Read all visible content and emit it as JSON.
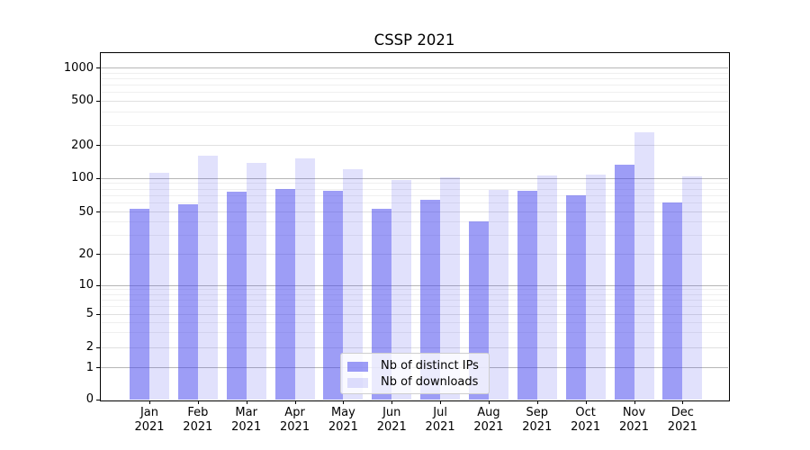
{
  "chart_data": {
    "type": "bar",
    "title": "CSSP 2021",
    "categories": [
      "Jan 2021",
      "Feb 2021",
      "Mar 2021",
      "Apr 2021",
      "May 2021",
      "Jun 2021",
      "Jul 2021",
      "Aug 2021",
      "Sep 2021",
      "Oct 2021",
      "Nov 2021",
      "Dec 2021"
    ],
    "series": [
      {
        "name": "Nb of distinct IPs",
        "color_hex": "#a9a9f5",
        "css_color": "rgba(68,68,238,0.52)",
        "values": [
          53,
          58,
          75,
          80,
          77,
          53,
          63,
          40,
          76,
          70,
          132,
          60
        ]
      },
      {
        "name": "Nb of downloads",
        "color_hex": "#dcdcf8",
        "css_color": "rgba(68,68,238,0.16)",
        "values": [
          110,
          158,
          137,
          150,
          119,
          95,
          101,
          78,
          105,
          106,
          258,
          103
        ]
      }
    ],
    "yscale": "symlog",
    "y_ticks": [
      0,
      1,
      2,
      5,
      10,
      20,
      50,
      100,
      200,
      500,
      1000
    ],
    "grid": true,
    "legend_position": "lower-center",
    "grid_color_major": "#b6b6b6",
    "grid_color_minor": "#efefef",
    "axis_color": "#000000"
  }
}
